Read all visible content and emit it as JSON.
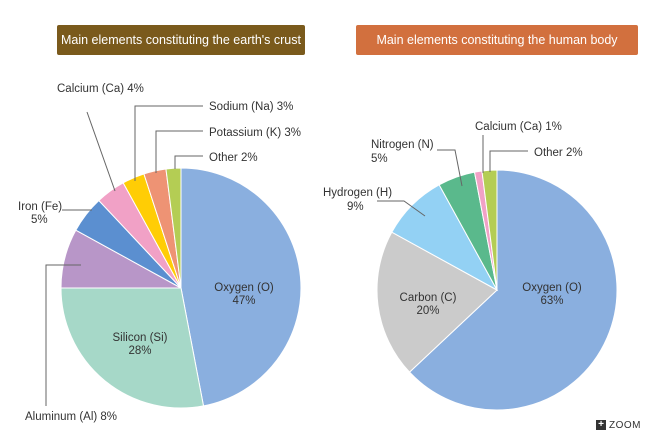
{
  "zoom": {
    "icon": "plus-icon",
    "label": "ZOOM"
  },
  "chart_data": [
    {
      "type": "pie",
      "title": "Main elements constituting the earth's crust",
      "title_color": "#7a5a1c",
      "slices": [
        {
          "label": "Oxygen (O)",
          "value": 47,
          "display": "47%",
          "color": "#8aafdf"
        },
        {
          "label": "Silicon (Si)",
          "value": 28,
          "display": "28%",
          "color": "#a6d8c8"
        },
        {
          "label": "Aluminum (Al)",
          "value": 8,
          "display": "8%",
          "color": "#b896c8"
        },
        {
          "label": "Iron (Fe)",
          "value": 5,
          "display": "5%",
          "color": "#5b8fd0"
        },
        {
          "label": "Calcium (Ca)",
          "value": 4,
          "display": "4%",
          "color": "#f1a1c6"
        },
        {
          "label": "Sodium (Na)",
          "value": 3,
          "display": "3%",
          "color": "#ffcd05"
        },
        {
          "label": "Potassium (K)",
          "value": 3,
          "display": "3%",
          "color": "#ee9374"
        },
        {
          "label": "Other",
          "value": 2,
          "display": "2%",
          "color": "#b4cd54"
        }
      ]
    },
    {
      "type": "pie",
      "title": "Main elements constituting the human body",
      "title_color": "#d2703e",
      "slices": [
        {
          "label": "Oxygen (O)",
          "value": 63,
          "display": "63%",
          "color": "#8aafdf"
        },
        {
          "label": "Carbon (C)",
          "value": 20,
          "display": "20%",
          "color": "#cbcbcb"
        },
        {
          "label": "Hydrogen (H)",
          "value": 9,
          "display": "9%",
          "color": "#93d1f4"
        },
        {
          "label": "Nitrogen (N)",
          "value": 5,
          "display": "5%",
          "color": "#5ab98c"
        },
        {
          "label": "Calcium (Ca)",
          "value": 1,
          "display": "1%",
          "color": "#f1a1c6"
        },
        {
          "label": "Other",
          "value": 2,
          "display": "2%",
          "color": "#b4cd54"
        }
      ]
    }
  ]
}
